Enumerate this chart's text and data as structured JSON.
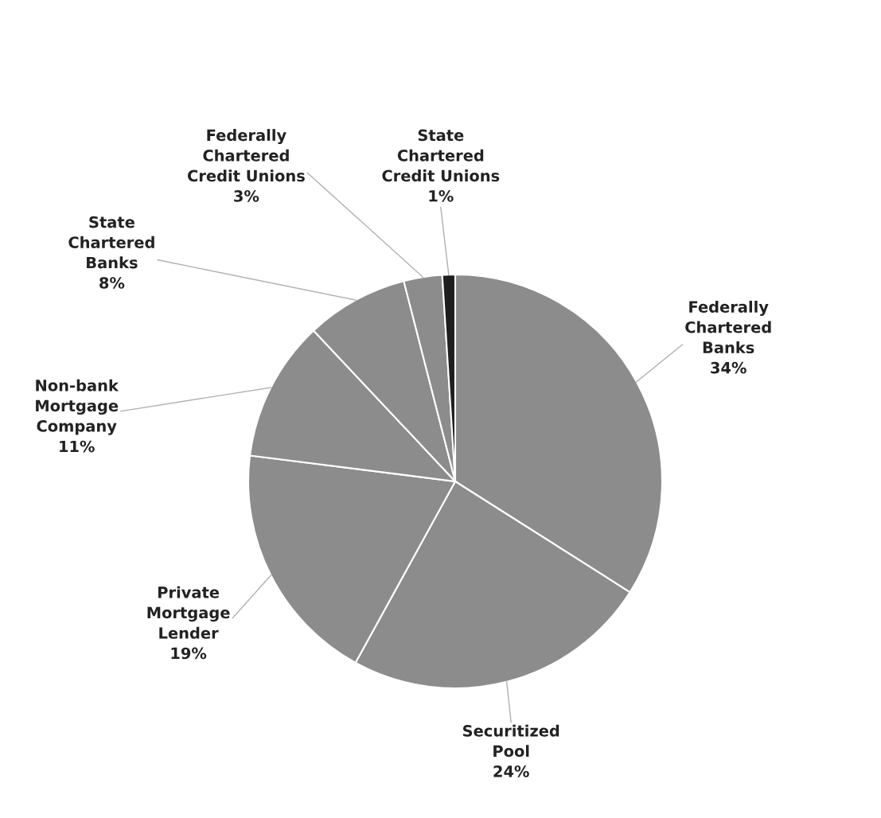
{
  "chart_data": {
    "type": "pie",
    "categories": [
      "Federally\nChartered\nBanks",
      "Securitized\nPool",
      "Private\nMortgage\nLender",
      "Non-bank\nMortgage\nCompany",
      "State\nChartered\nBanks",
      "Federally\nChartered\nCredit Unions",
      "State\nChartered\nCredit Unions"
    ],
    "values": [
      34,
      24,
      19,
      11,
      8,
      3,
      1
    ],
    "value_labels": [
      "34%",
      "24%",
      "19%",
      "11%",
      "8%",
      "3%",
      "1%"
    ],
    "colors": [
      "#8c8c8c",
      "#8c8c8c",
      "#8c8c8c",
      "#8c8c8c",
      "#8c8c8c",
      "#8c8c8c",
      "#1e1e1e"
    ],
    "legend": false
  }
}
